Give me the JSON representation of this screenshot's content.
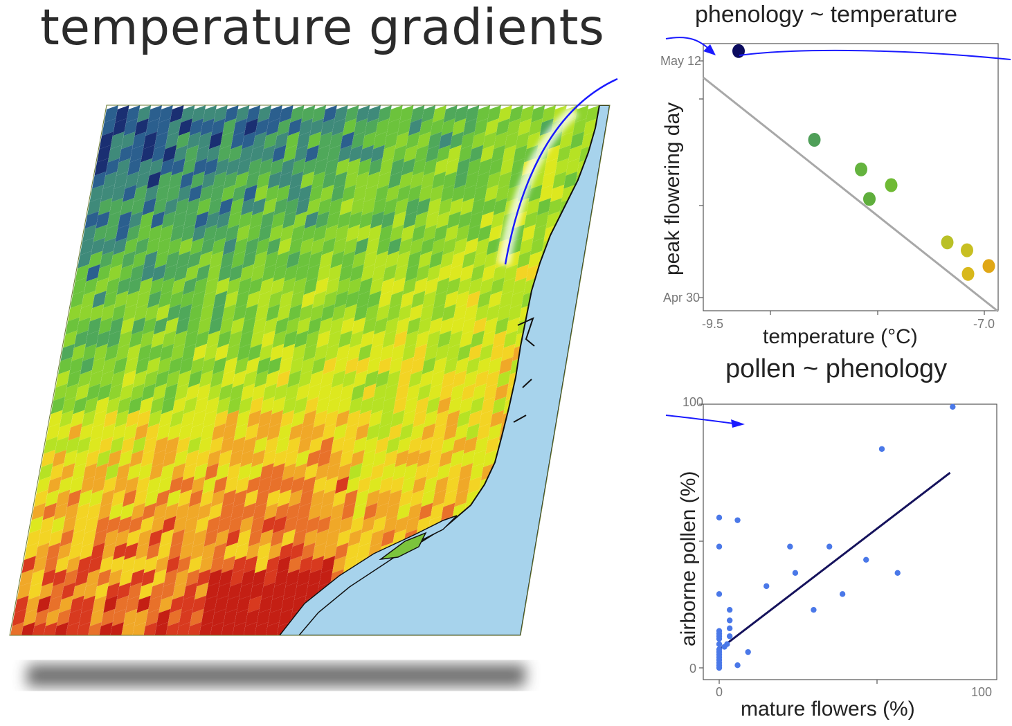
{
  "page_title": "temperature gradients",
  "map": {
    "colors": {
      "water": "#a7d3ec",
      "coast": "#111111",
      "palette": [
        "#1a2f72",
        "#2b5f8e",
        "#3f8a7a",
        "#4fa85a",
        "#6cc33c",
        "#8fd42e",
        "#b6e224",
        "#dde81f",
        "#f3d424",
        "#f0a828",
        "#e8712a",
        "#d83a1f",
        "#c41f14"
      ]
    },
    "highlight_color": "#1a1aff"
  },
  "chart_data": [
    {
      "type": "scatter",
      "title": "phenology ~ temperature",
      "xlabel": "temperature (°C)",
      "ylabel": "peak flowering day",
      "xlim": [
        -9.8,
        -6.96
      ],
      "ylim": [
        "Apr 30",
        "May 12"
      ],
      "x_ticks": [
        "-9.5",
        "-7.0"
      ],
      "y_ticks": [
        "May 12",
        "Apr 30"
      ],
      "points": [
        {
          "x": -9.46,
          "y": "May 12.5",
          "color": "#0b0b5e"
        },
        {
          "x": -8.73,
          "y": "May 8",
          "color": "#4f9f58"
        },
        {
          "x": -8.28,
          "y": "May 6.5",
          "color": "#64b33e"
        },
        {
          "x": -7.99,
          "y": "May 5.7",
          "color": "#6fba34"
        },
        {
          "x": -8.2,
          "y": "May 5",
          "color": "#5fae3c"
        },
        {
          "x": -7.45,
          "y": "May 2.8",
          "color": "#b9c027"
        },
        {
          "x": -7.26,
          "y": "May 2.4",
          "color": "#c8bf22"
        },
        {
          "x": -7.05,
          "y": "May 1.6",
          "color": "#e0a716"
        },
        {
          "x": -7.25,
          "y": "May 1.2",
          "color": "#d8b81b"
        }
      ],
      "trend_line": {
        "color": "#a8a8a8"
      },
      "grid": false
    },
    {
      "type": "scatter",
      "title": "pollen ~ phenology",
      "xlabel": "mature flowers (%)",
      "ylabel": "airborne pollen (%)",
      "xlim": [
        -3,
        100
      ],
      "ylim": [
        -3,
        100
      ],
      "x_ticks": [
        "0",
        "100"
      ],
      "y_ticks": [
        "100",
        "0"
      ],
      "point_color": "#4a78e8",
      "points": [
        [
          0,
          0
        ],
        [
          0,
          1
        ],
        [
          0,
          2
        ],
        [
          0,
          3
        ],
        [
          0,
          4
        ],
        [
          0,
          5
        ],
        [
          0,
          6
        ],
        [
          0,
          7
        ],
        [
          0,
          9
        ],
        [
          0,
          11
        ],
        [
          0,
          12
        ],
        [
          0,
          13
        ],
        [
          0,
          14
        ],
        [
          0,
          28
        ],
        [
          0,
          46
        ],
        [
          0,
          57
        ],
        [
          3,
          9
        ],
        [
          4,
          15
        ],
        [
          4,
          12
        ],
        [
          4,
          18
        ],
        [
          4,
          22
        ],
        [
          7,
          56
        ],
        [
          7,
          1
        ],
        [
          11,
          6
        ],
        [
          18,
          31
        ],
        [
          27,
          46
        ],
        [
          29,
          36
        ],
        [
          36,
          22
        ],
        [
          42,
          46
        ],
        [
          47,
          28
        ],
        [
          56,
          41
        ],
        [
          62,
          83
        ],
        [
          68,
          36
        ],
        [
          89,
          99
        ],
        [
          2,
          8
        ]
      ],
      "trend_line": {
        "from": [
          0,
          7
        ],
        "to": [
          88,
          74
        ],
        "color": "#15125c"
      },
      "grid": false
    }
  ]
}
